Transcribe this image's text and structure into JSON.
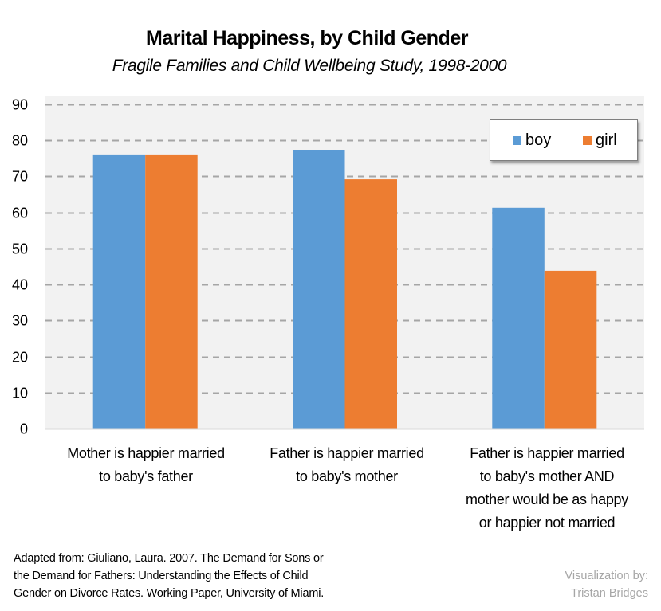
{
  "chart_data": {
    "type": "bar",
    "title": "Marital Happiness, by Child Gender",
    "subtitle": "Fragile Families and Child Wellbeing Study, 1998-2000",
    "xlabel": "",
    "ylabel": "",
    "ylim": [
      0,
      90
    ],
    "yticks": [
      "0",
      "10",
      "20",
      "30",
      "40",
      "50",
      "60",
      "70",
      "80",
      "90"
    ],
    "grid": true,
    "legend_position": "top-right",
    "categories": [
      [
        "Mother is happier married",
        "to baby's father"
      ],
      [
        "Father is happier married",
        "to baby's mother"
      ],
      [
        "Father is happier married",
        "to baby's mother AND",
        "mother would be as happy",
        "or happier not married"
      ]
    ],
    "series": [
      {
        "name": "boy",
        "color": "#5b9bd5",
        "values": [
          76.1,
          77.4,
          61.3
        ]
      },
      {
        "name": "girl",
        "color": "#ed7d31",
        "values": [
          76.1,
          69.2,
          43.8
        ]
      }
    ]
  },
  "footer": {
    "source": [
      "Adapted from: Giuliano, Laura. 2007. The Demand for Sons or",
      "the Demand for Fathers: Understanding the Effects of Child",
      "Gender on Divorce Rates.  Working Paper, University of Miami."
    ],
    "credit": [
      "Visualization by:",
      "Tristan Bridges"
    ]
  },
  "colors": {
    "plot_background": "#f2f2f2",
    "gridline": "#a6a6a6",
    "axis": "#d9d9d9"
  }
}
